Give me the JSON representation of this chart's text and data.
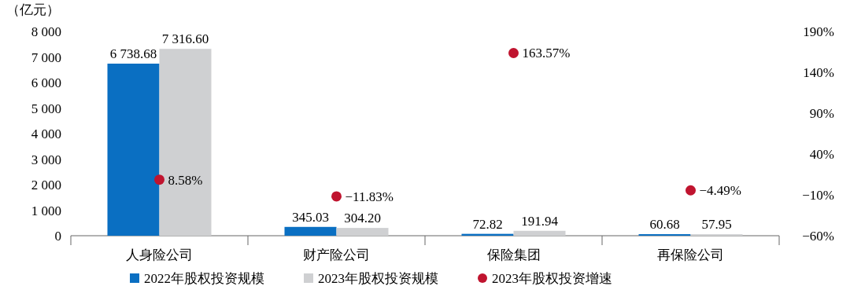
{
  "chart_data": {
    "type": "bar",
    "ylabel": "（亿元）",
    "categories": [
      "人身险公司",
      "财产险公司",
      "保险集团",
      "再保险公司"
    ],
    "series": [
      {
        "name": "2022年股权投资规模",
        "color": "#0a6fc2",
        "values": [
          6738.68,
          345.03,
          72.82,
          60.68
        ],
        "value_labels": [
          "6 738.68",
          "345.03",
          "72.82",
          "60.68"
        ]
      },
      {
        "name": "2023年股权投资规模",
        "color": "#cfd0d2",
        "values": [
          7316.6,
          304.2,
          191.94,
          57.95
        ],
        "value_labels": [
          "7 316.60",
          "304.20",
          "191.94",
          "57.95"
        ]
      },
      {
        "name": "2023年股权投资增速",
        "type": "scatter",
        "axis": "y2",
        "color": "#c0142f",
        "values": [
          8.58,
          -11.83,
          163.57,
          -4.49
        ],
        "value_labels": [
          "8.58%",
          "−11.83%",
          "163.57%",
          "−4.49%"
        ]
      }
    ],
    "ylim": [
      0,
      8000
    ],
    "yticks": [
      0,
      {
        "value": 1000,
        "label": "1 000"
      },
      {
        "value": 2000,
        "label": "2 000"
      },
      {
        "value": 3000,
        "label": "3 000"
      },
      {
        "value": 4000,
        "label": "4 000"
      },
      {
        "value": 5000,
        "label": "5 000"
      },
      {
        "value": 6000,
        "label": "6 000"
      },
      {
        "value": 7000,
        "label": "7 000"
      },
      {
        "value": 8000,
        "label": "8 000"
      }
    ],
    "y2lim": [
      -60,
      190
    ],
    "y2ticks": [
      {
        "value": -60,
        "label": "−60%"
      },
      {
        "value": -10,
        "label": "−10%"
      },
      {
        "value": 40,
        "label": "40%"
      },
      {
        "value": 90,
        "label": "90%"
      },
      {
        "value": 140,
        "label": "140%"
      },
      {
        "value": 190,
        "label": "190%"
      }
    ],
    "legend": "bottom",
    "marker": "circle"
  }
}
